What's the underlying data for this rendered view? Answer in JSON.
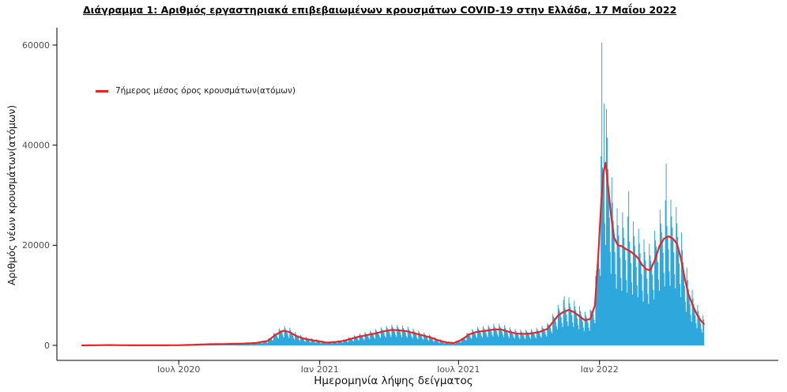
{
  "page": {
    "background": "#ffffff"
  },
  "chart_data": {
    "type": "bar",
    "title": "Διάγραμμα 1: Αριθμός εργαστηριακά επιβεβαιωμένων κρουσμάτων COVID-19 στην Ελλάδα, 17 Μαΐου 2022",
    "xlabel": "Ημερομηνία λήψης δείγματος",
    "ylabel": "Αριθμός νέων κρουσμάτων(ατόμων)",
    "legend_label": "7ήμερος μέσος όρος κρουσμάτων(ατόμων)",
    "legend_position": "inside-top-left",
    "grid": false,
    "bar_color": "#2ea8dc",
    "line_color": "#ee2222",
    "axis_color": "#000000",
    "tick_label_color": "#4d4d4d",
    "ylim": [
      0,
      62000
    ],
    "yticks": [
      0,
      20000,
      40000,
      60000
    ],
    "xticks": [
      {
        "date": "2020-07-01",
        "label": "Ιουλ 2020"
      },
      {
        "date": "2021-01-01",
        "label": "Ιαν 2021"
      },
      {
        "date": "2021-07-01",
        "label": "Ιουλ 2021"
      },
      {
        "date": "2022-01-01",
        "label": "Ιαν 2022"
      }
    ],
    "x_range": [
      "2020-02-26",
      "2022-05-17"
    ],
    "seven_day_average_points": [
      [
        "2020-02-26",
        0
      ],
      [
        "2020-03-10",
        15
      ],
      [
        "2020-04-01",
        65
      ],
      [
        "2020-04-20",
        25
      ],
      [
        "2020-06-01",
        15
      ],
      [
        "2020-07-01",
        30
      ],
      [
        "2020-07-20",
        120
      ],
      [
        "2020-08-10",
        230
      ],
      [
        "2020-09-01",
        280
      ],
      [
        "2020-09-20",
        340
      ],
      [
        "2020-10-10",
        480
      ],
      [
        "2020-10-25",
        900
      ],
      [
        "2020-11-05",
        2200
      ],
      [
        "2020-11-14",
        2900
      ],
      [
        "2020-11-22",
        2700
      ],
      [
        "2020-12-01",
        1900
      ],
      [
        "2020-12-10",
        1400
      ],
      [
        "2020-12-20",
        1100
      ],
      [
        "2021-01-01",
        800
      ],
      [
        "2021-01-10",
        550
      ],
      [
        "2021-01-20",
        650
      ],
      [
        "2021-02-01",
        900
      ],
      [
        "2021-02-10",
        1300
      ],
      [
        "2021-02-20",
        1700
      ],
      [
        "2021-03-05",
        2100
      ],
      [
        "2021-03-15",
        2400
      ],
      [
        "2021-03-25",
        2800
      ],
      [
        "2021-04-05",
        3100
      ],
      [
        "2021-04-15",
        3000
      ],
      [
        "2021-04-25",
        2800
      ],
      [
        "2021-05-05",
        2400
      ],
      [
        "2021-05-15",
        2000
      ],
      [
        "2021-05-25",
        1600
      ],
      [
        "2021-06-05",
        1000
      ],
      [
        "2021-06-15",
        600
      ],
      [
        "2021-06-25",
        480
      ],
      [
        "2021-07-05",
        1100
      ],
      [
        "2021-07-15",
        2200
      ],
      [
        "2021-07-25",
        2700
      ],
      [
        "2021-08-05",
        2900
      ],
      [
        "2021-08-15",
        3150
      ],
      [
        "2021-08-25",
        3200
      ],
      [
        "2021-09-05",
        2700
      ],
      [
        "2021-09-15",
        2350
      ],
      [
        "2021-09-25",
        2300
      ],
      [
        "2021-10-05",
        2400
      ],
      [
        "2021-10-15",
        2700
      ],
      [
        "2021-10-25",
        3300
      ],
      [
        "2021-11-01",
        4600
      ],
      [
        "2021-11-08",
        6000
      ],
      [
        "2021-11-15",
        6700
      ],
      [
        "2021-11-22",
        7100
      ],
      [
        "2021-11-29",
        6600
      ],
      [
        "2021-12-06",
        5800
      ],
      [
        "2021-12-13",
        5000
      ],
      [
        "2021-12-20",
        5300
      ],
      [
        "2021-12-26",
        8000
      ],
      [
        "2021-12-30",
        17000
      ],
      [
        "2022-01-03",
        28000
      ],
      [
        "2022-01-06",
        34500
      ],
      [
        "2022-01-09",
        36500
      ],
      [
        "2022-01-12",
        32000
      ],
      [
        "2022-01-16",
        26000
      ],
      [
        "2022-01-20",
        21500
      ],
      [
        "2022-01-25",
        20000
      ],
      [
        "2022-01-30",
        19800
      ],
      [
        "2022-02-05",
        19200
      ],
      [
        "2022-02-10",
        18800
      ],
      [
        "2022-02-15",
        18200
      ],
      [
        "2022-02-20",
        17500
      ],
      [
        "2022-02-25",
        16200
      ],
      [
        "2022-03-03",
        15200
      ],
      [
        "2022-03-08",
        15000
      ],
      [
        "2022-03-14",
        17000
      ],
      [
        "2022-03-20",
        19800
      ],
      [
        "2022-03-26",
        21300
      ],
      [
        "2022-04-01",
        21800
      ],
      [
        "2022-04-07",
        21300
      ],
      [
        "2022-04-12",
        20300
      ],
      [
        "2022-04-17",
        17500
      ],
      [
        "2022-04-22",
        13500
      ],
      [
        "2022-04-27",
        10200
      ],
      [
        "2022-05-03",
        7800
      ],
      [
        "2022-05-08",
        6200
      ],
      [
        "2022-05-13",
        5000
      ],
      [
        "2022-05-17",
        4300
      ]
    ],
    "bar_outliers": {
      "2021-11-16": 9800,
      "2022-01-04": 60500,
      "2022-01-07": 48300,
      "2022-01-11": 41500,
      "2022-02-08": 30800,
      "2022-03-29": 36300
    },
    "bar_weekly_factors_sun_to_sat": [
      0.55,
      1.35,
      1.2,
      1.1,
      1.0,
      0.88,
      0.68
    ]
  }
}
